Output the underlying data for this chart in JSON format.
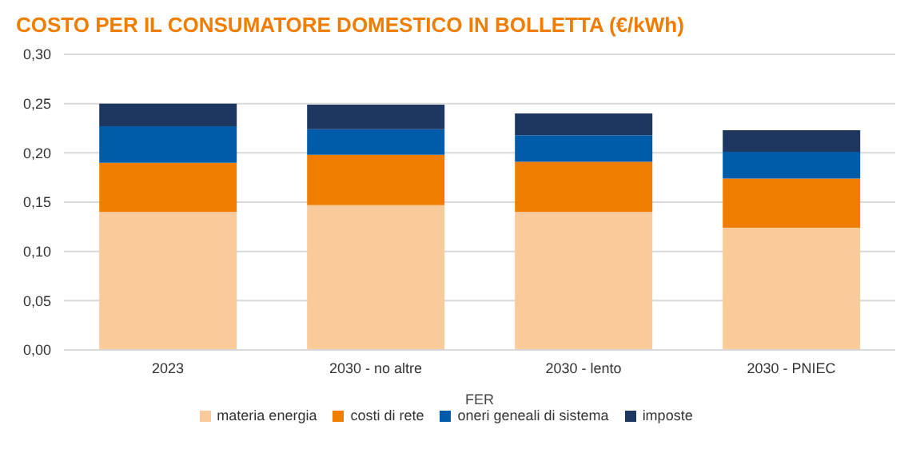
{
  "chart_data": {
    "type": "bar",
    "title": "COSTO PER IL CONSUMATORE DOMESTICO IN BOLLETTA (€/kWh)",
    "xlabel": "FER",
    "categories": [
      "2023",
      "2030 - no altre",
      "2030 - lento",
      "2030 - PNIEC"
    ],
    "stacked": true,
    "ylim": [
      0,
      0.3
    ],
    "yticks": [
      {
        "value": 0,
        "label": "0,00"
      },
      {
        "value": 0.05,
        "label": "0,05"
      },
      {
        "value": 0.1,
        "label": "0,10"
      },
      {
        "value": 0.15,
        "label": "0,15"
      },
      {
        "value": 0.2,
        "label": "0,20"
      },
      {
        "value": 0.25,
        "label": "0,25"
      },
      {
        "value": 0.3,
        "label": "0,30"
      }
    ],
    "grid": "y",
    "legend": "bottom",
    "series": [
      {
        "name": "materia energia",
        "color": "#f9ca9a",
        "values": [
          0.14,
          0.147,
          0.14,
          0.124
        ]
      },
      {
        "name": "costi di rete",
        "color": "#ef7d00",
        "values": [
          0.05,
          0.051,
          0.051,
          0.05
        ]
      },
      {
        "name": "oneri geneali di sistema",
        "color": "#005ca9",
        "values": [
          0.037,
          0.026,
          0.027,
          0.027
        ]
      },
      {
        "name": "imposte",
        "color": "#1d3761",
        "values": [
          0.023,
          0.025,
          0.022,
          0.022
        ]
      }
    ]
  }
}
